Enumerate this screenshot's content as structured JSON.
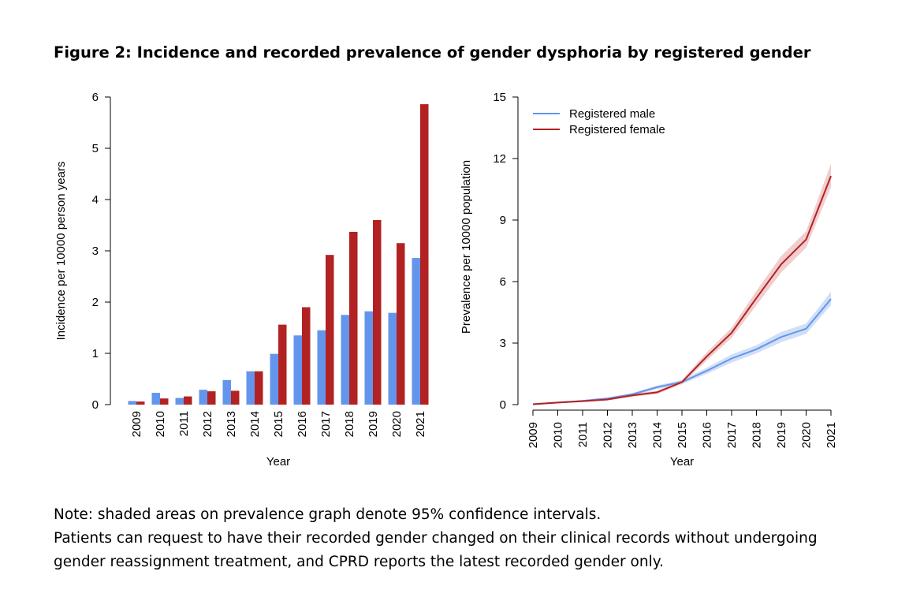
{
  "figure": {
    "title": "Figure 2: Incidence and recorded prevalence of gender dysphoria by registered gender"
  },
  "notes": [
    "Note: shaded areas on prevalence graph denote 95% confidence intervals.",
    "Patients can request to have their recorded gender changed on their clinical records without undergoing",
    "gender reassignment treatment, and CPRD reports the latest recorded gender only."
  ],
  "colors": {
    "male": "#6495ED",
    "female": "#B22222",
    "male_band": "#C9D9F5",
    "female_band": "#EFC6C6"
  },
  "chart_data": [
    {
      "type": "bar",
      "xlabel": "Year",
      "ylabel": "Incidence per 10000 person years",
      "ylim": [
        0,
        6
      ],
      "yticks": [
        0,
        1,
        2,
        3,
        4,
        5,
        6
      ],
      "grid": false,
      "categories": [
        "2009",
        "2010",
        "2011",
        "2012",
        "2013",
        "2014",
        "2015",
        "2016",
        "2017",
        "2018",
        "2019",
        "2020",
        "2021"
      ],
      "series": [
        {
          "name": "Registered male",
          "color": "#6495ED",
          "values": [
            0.07,
            0.23,
            0.13,
            0.29,
            0.48,
            0.65,
            0.99,
            1.35,
            1.45,
            1.75,
            1.82,
            1.79,
            2.86
          ]
        },
        {
          "name": "Registered female",
          "color": "#B22222",
          "values": [
            0.06,
            0.12,
            0.16,
            0.26,
            0.27,
            0.65,
            1.56,
            1.9,
            2.92,
            3.37,
            3.6,
            3.15,
            5.86
          ]
        }
      ]
    },
    {
      "type": "line",
      "xlabel": "Year",
      "ylabel": "Prevalence per 10000 population",
      "ylim": [
        0,
        15
      ],
      "yticks": [
        0,
        3,
        6,
        9,
        12,
        15
      ],
      "grid": false,
      "legend_position": "top-left",
      "x": [
        "2009",
        "2010",
        "2011",
        "2012",
        "2013",
        "2014",
        "2015",
        "2016",
        "2017",
        "2018",
        "2019",
        "2020",
        "2021"
      ],
      "series": [
        {
          "name": "Registered male",
          "color": "#6495ED",
          "values": [
            0.02,
            0.1,
            0.18,
            0.3,
            0.5,
            0.85,
            1.1,
            1.65,
            2.25,
            2.7,
            3.3,
            3.7,
            5.15
          ],
          "ci_lower": [
            0.0,
            0.07,
            0.14,
            0.25,
            0.43,
            0.76,
            1.0,
            1.5,
            2.05,
            2.5,
            3.05,
            3.45,
            4.85
          ],
          "ci_upper": [
            0.04,
            0.13,
            0.22,
            0.35,
            0.57,
            0.94,
            1.2,
            1.8,
            2.45,
            2.9,
            3.55,
            3.95,
            5.5
          ]
        },
        {
          "name": "Registered female",
          "color": "#B22222",
          "values": [
            0.02,
            0.1,
            0.17,
            0.25,
            0.45,
            0.6,
            1.1,
            2.35,
            3.5,
            5.2,
            6.85,
            8.05,
            11.15
          ],
          "ci_lower": [
            0.0,
            0.07,
            0.13,
            0.2,
            0.38,
            0.52,
            1.0,
            2.15,
            3.25,
            4.85,
            6.45,
            7.65,
            10.6
          ],
          "ci_upper": [
            0.04,
            0.13,
            0.21,
            0.3,
            0.52,
            0.68,
            1.2,
            2.55,
            3.75,
            5.55,
            7.25,
            8.45,
            11.75
          ]
        }
      ]
    }
  ]
}
